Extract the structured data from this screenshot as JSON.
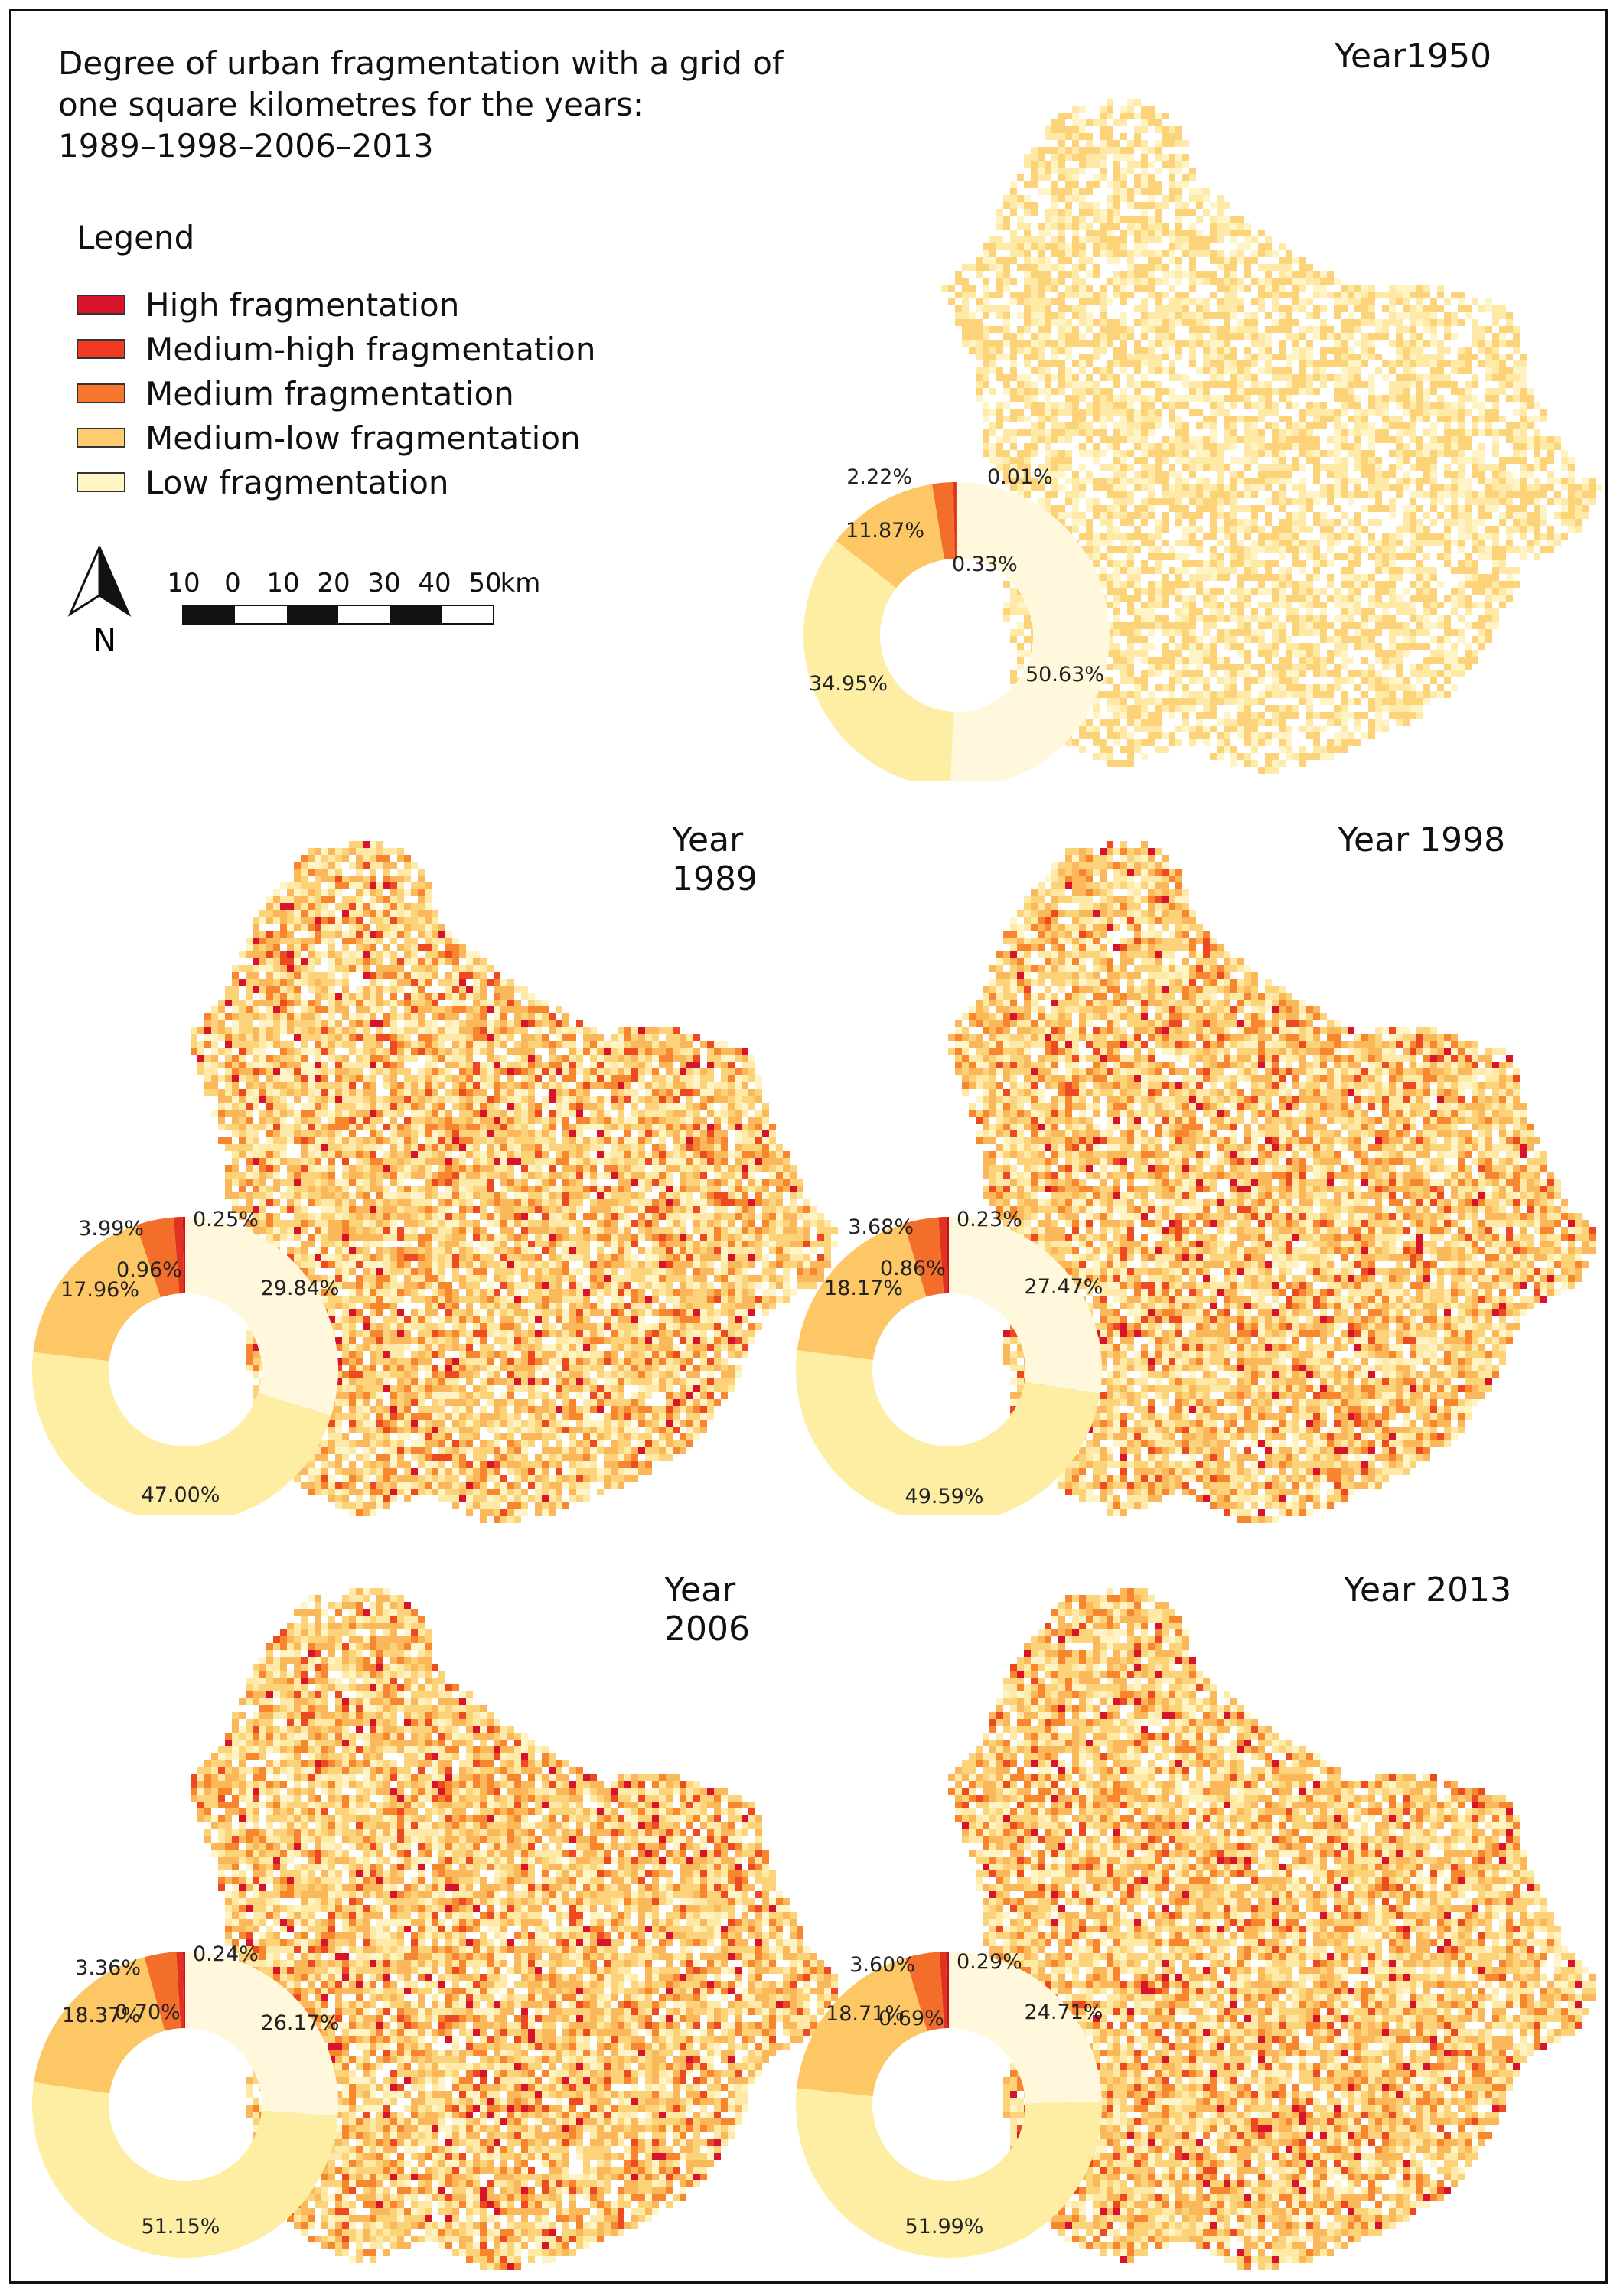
{
  "title": {
    "lines": [
      "Degree of urban fragmentation with a grid of",
      "one square kilometres for the years:",
      "1989–1998–2006–2013"
    ]
  },
  "legend": {
    "title": "Legend",
    "items": [
      {
        "key": "high",
        "label": "High fragmentation",
        "color": "#d7142c"
      },
      {
        "key": "medium_high",
        "label": "Medium-high fragmentation",
        "color": "#f23a22"
      },
      {
        "key": "medium",
        "label": "Medium fragmentation",
        "color": "#f7762e"
      },
      {
        "key": "medium_low",
        "label": "Medium-low fragmentation",
        "color": "#fdcc6e"
      },
      {
        "key": "low",
        "label": "Low fragmentation",
        "color": "#fef4c4"
      }
    ]
  },
  "north_arrow": {
    "label": "N"
  },
  "scale_bar": {
    "ticks": [
      "10",
      "0",
      "10",
      "20",
      "30",
      "40",
      "50"
    ],
    "unit": "km"
  },
  "chart_data": [
    {
      "type": "pie",
      "title": "Year1950",
      "labels": [
        "High fragmentation",
        "Medium-high fragmentation",
        "Medium fragmentation",
        "Medium-low fragmentation",
        "Low fragmentation",
        "Low fragmentation (lightest)"
      ],
      "values": [
        0.01,
        0.33,
        2.22,
        11.87,
        34.95,
        50.63
      ],
      "value_labels": [
        "0.01%",
        "0.33%",
        "2.22%",
        "11.87%",
        "34.95%",
        "50.63%"
      ]
    },
    {
      "type": "pie",
      "title": "Year 1989",
      "values": [
        0.25,
        0.96,
        3.99,
        17.96,
        47.0,
        29.84
      ],
      "value_labels": [
        "0.25%",
        "0.96%",
        "3.99%",
        "17.96%",
        "47.00%",
        "29.84%"
      ]
    },
    {
      "type": "pie",
      "title": "Year 1998",
      "values": [
        0.23,
        0.86,
        3.68,
        18.17,
        49.59,
        27.47
      ],
      "value_labels": [
        "0.23%",
        "0.86%",
        "3.68%",
        "18.17%",
        "49.59%",
        "27.47%"
      ]
    },
    {
      "type": "pie",
      "title": "Year 2006",
      "values": [
        0.24,
        0.7,
        3.36,
        18.37,
        51.15,
        26.17
      ],
      "value_labels": [
        "0.24%",
        "0.70%",
        "3.36%",
        "18.37%",
        "51.15%",
        "26.17%"
      ]
    },
    {
      "type": "pie",
      "title": "Year 2013",
      "values": [
        0.29,
        0.69,
        3.6,
        18.71,
        51.99,
        24.71
      ],
      "value_labels": [
        "0.29%",
        "0.69%",
        "3.60%",
        "18.71%",
        "51.99%",
        "24.71%"
      ]
    }
  ],
  "slice_colors": [
    "#c40f24",
    "#e0321e",
    "#f36e2a",
    "#fdc766",
    "#feeea3",
    "#fff8dc"
  ]
}
